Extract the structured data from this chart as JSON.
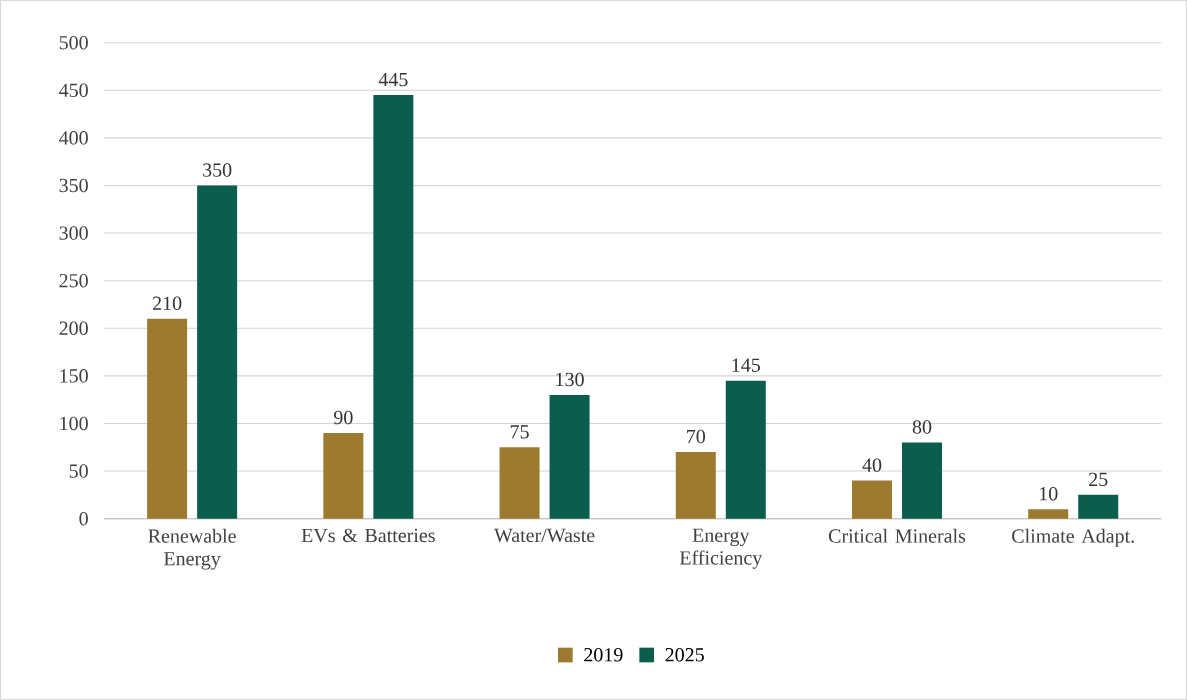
{
  "chart_data": {
    "type": "bar",
    "categories": [
      "Renewable Energy",
      "EVs & Batteries",
      "Water/Waste",
      "Energy Efficiency",
      "Critical Minerals",
      "Climate Adapt."
    ],
    "series": [
      {
        "name": "2019",
        "color": "#9c7a30",
        "values": [
          210,
          90,
          75,
          70,
          40,
          10
        ]
      },
      {
        "name": "2025",
        "color": "#0b5e4b",
        "values": [
          350,
          445,
          130,
          145,
          80,
          25
        ]
      }
    ],
    "ylim": [
      0,
      500
    ],
    "yticks": [
      0,
      50,
      100,
      150,
      200,
      250,
      300,
      350,
      400,
      450,
      500
    ],
    "grid": "y",
    "legend": "bottom",
    "data_labels": true
  }
}
